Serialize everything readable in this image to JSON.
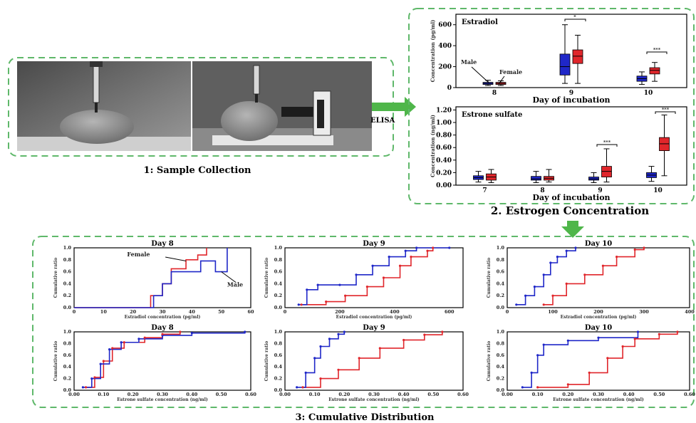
{
  "captions": {
    "sample": "1: Sample Collection",
    "estrogen": "2. Estrogen Concentration",
    "cumulative": "3: Cumulative Distribution",
    "arrow_label": "ELISA"
  },
  "colors": {
    "male": "#1f27c8",
    "female": "#e0262b",
    "frame": "#5fb86a",
    "arrow": "#4fb64a"
  },
  "chart_data": [
    {
      "id": "estradiol",
      "type": "box",
      "title": "Estradiol",
      "xlabel": "Day of incubation",
      "ylabel": "Concentration (pg/ml)",
      "ylim": [
        0,
        700
      ],
      "yticks": [
        "0",
        "200",
        "400",
        "600"
      ],
      "categories": [
        "8",
        "9",
        "10"
      ],
      "annotations": [
        "Male",
        "Female",
        "*",
        "***"
      ],
      "series": [
        {
          "name": "Male",
          "boxes": [
            [
              20,
              30,
              40,
              50,
              70
            ],
            [
              40,
              120,
              200,
              320,
              600
            ],
            [
              30,
              60,
              85,
              110,
              150
            ]
          ]
        },
        {
          "name": "Female",
          "boxes": [
            [
              20,
              30,
              40,
              50,
              65
            ],
            [
              40,
              230,
              300,
              360,
              500
            ],
            [
              60,
              130,
              165,
              190,
              240
            ]
          ]
        }
      ]
    },
    {
      "id": "estrone",
      "type": "box",
      "title": "Estrone sulfate",
      "xlabel": "Day of incubation",
      "ylabel": "Concentration (ng/ml)",
      "ylim": [
        0,
        1.25
      ],
      "yticks": [
        "0.00",
        "0.20",
        "0.40",
        "0.60",
        "0.80",
        "1.00",
        "1.20"
      ],
      "categories": [
        "7",
        "8",
        "9",
        "10"
      ],
      "annotations": [
        "***",
        "***"
      ],
      "series": [
        {
          "name": "Male",
          "boxes": [
            [
              0.05,
              0.09,
              0.12,
              0.15,
              0.22
            ],
            [
              0.04,
              0.08,
              0.1,
              0.14,
              0.22
            ],
            [
              0.04,
              0.08,
              0.1,
              0.13,
              0.2
            ],
            [
              0.06,
              0.12,
              0.16,
              0.2,
              0.3
            ]
          ]
        },
        {
          "name": "Female",
          "boxes": [
            [
              0.04,
              0.08,
              0.13,
              0.18,
              0.25
            ],
            [
              0.05,
              0.08,
              0.11,
              0.14,
              0.25
            ],
            [
              0.05,
              0.13,
              0.22,
              0.3,
              0.58
            ],
            [
              0.15,
              0.55,
              0.66,
              0.76,
              1.12
            ]
          ]
        }
      ]
    }
  ],
  "cdf_panels": [
    {
      "title": "Day 8",
      "ylabel": "Cumulative ratio",
      "xlabel": "Estradiol concentration (pg/ml)",
      "xticks": [
        "0",
        "10",
        "20",
        "30",
        "40",
        "50",
        "60"
      ],
      "xmax": 60,
      "labels": [
        "Female",
        "Male"
      ],
      "male": [
        [
          0,
          0
        ],
        [
          27,
          0
        ],
        [
          27,
          0.2
        ],
        [
          30,
          0.2
        ],
        [
          30,
          0.4
        ],
        [
          33,
          0.4
        ],
        [
          33,
          0.6
        ],
        [
          43,
          0.6
        ],
        [
          43,
          0.78
        ],
        [
          48,
          0.78
        ],
        [
          48,
          0.6
        ],
        [
          52,
          0.6
        ],
        [
          52,
          1
        ]
      ],
      "female": [
        [
          0,
          0
        ],
        [
          26,
          0
        ],
        [
          26,
          0.2
        ],
        [
          30,
          0.2
        ],
        [
          30,
          0.4
        ],
        [
          33,
          0.4
        ],
        [
          33,
          0.65
        ],
        [
          38,
          0.65
        ],
        [
          38,
          0.8
        ],
        [
          42,
          0.8
        ],
        [
          42,
          0.88
        ],
        [
          45,
          0.88
        ],
        [
          45,
          1
        ]
      ]
    },
    {
      "title": "Day 9",
      "ylabel": "Cumulative ratio",
      "xlabel": "Estradiol concentration (pg/ml)",
      "xticks": [
        "0",
        "200",
        "400",
        "600"
      ],
      "xmax": 650,
      "male": [
        [
          50,
          0.05
        ],
        [
          80,
          0.3
        ],
        [
          120,
          0.38
        ],
        [
          200,
          0.38
        ],
        [
          260,
          0.55
        ],
        [
          320,
          0.7
        ],
        [
          380,
          0.85
        ],
        [
          440,
          0.95
        ],
        [
          480,
          1
        ],
        [
          600,
          1
        ]
      ],
      "female": [
        [
          60,
          0.05
        ],
        [
          150,
          0.1
        ],
        [
          220,
          0.2
        ],
        [
          300,
          0.35
        ],
        [
          360,
          0.5
        ],
        [
          420,
          0.7
        ],
        [
          460,
          0.85
        ],
        [
          520,
          0.95
        ],
        [
          540,
          1
        ]
      ]
    },
    {
      "title": "Day 10",
      "ylabel": "Cumulative ratio",
      "xlabel": "Estradiol concentration (pg/ml)",
      "xticks": [
        "0",
        "100",
        "200",
        "300",
        "400"
      ],
      "xmax": 400,
      "male": [
        [
          20,
          0.05
        ],
        [
          40,
          0.2
        ],
        [
          60,
          0.35
        ],
        [
          80,
          0.55
        ],
        [
          95,
          0.75
        ],
        [
          110,
          0.85
        ],
        [
          130,
          0.95
        ],
        [
          150,
          1
        ]
      ],
      "female": [
        [
          80,
          0.05
        ],
        [
          100,
          0.2
        ],
        [
          130,
          0.4
        ],
        [
          170,
          0.55
        ],
        [
          210,
          0.7
        ],
        [
          240,
          0.85
        ],
        [
          280,
          0.97
        ],
        [
          300,
          1
        ]
      ]
    },
    {
      "title": "Day 8",
      "ylabel": "Cumulative ratio",
      "xlabel": "Estrone sulfate concentration (ng/ml)",
      "xticks": [
        "0.00",
        "0.10",
        "0.20",
        "0.30",
        "0.40",
        "0.50",
        "0.60"
      ],
      "xmax": 0.6,
      "male": [
        [
          0.03,
          0.05
        ],
        [
          0.06,
          0.2
        ],
        [
          0.09,
          0.45
        ],
        [
          0.12,
          0.7
        ],
        [
          0.16,
          0.82
        ],
        [
          0.22,
          0.88
        ],
        [
          0.3,
          0.94
        ],
        [
          0.4,
          0.98
        ],
        [
          0.58,
          1
        ]
      ],
      "female": [
        [
          0.04,
          0.05
        ],
        [
          0.07,
          0.22
        ],
        [
          0.1,
          0.5
        ],
        [
          0.13,
          0.72
        ],
        [
          0.17,
          0.82
        ],
        [
          0.24,
          0.9
        ],
        [
          0.3,
          0.96
        ],
        [
          0.36,
          1
        ]
      ]
    },
    {
      "title": "Day 9",
      "ylabel": "Cumulative ratio",
      "xlabel": "Estrone sulfate concentration (ng/ml)",
      "xticks": [
        "0.00",
        "0.10",
        "0.20",
        "0.30",
        "0.40",
        "0.50",
        "0.60"
      ],
      "xmax": 0.6,
      "male": [
        [
          0.04,
          0.05
        ],
        [
          0.07,
          0.3
        ],
        [
          0.1,
          0.55
        ],
        [
          0.12,
          0.75
        ],
        [
          0.15,
          0.88
        ],
        [
          0.18,
          0.96
        ],
        [
          0.2,
          1
        ]
      ],
      "female": [
        [
          0.06,
          0.05
        ],
        [
          0.12,
          0.2
        ],
        [
          0.18,
          0.35
        ],
        [
          0.25,
          0.55
        ],
        [
          0.32,
          0.72
        ],
        [
          0.4,
          0.86
        ],
        [
          0.47,
          0.95
        ],
        [
          0.53,
          1
        ]
      ]
    },
    {
      "title": "Day 10",
      "ylabel": "Cumulative ratio",
      "xlabel": "Estrone sulfate concentration (ng/ml)",
      "xticks": [
        "0.00",
        "0.10",
        "0.20",
        "0.30",
        "0.40",
        "0.50",
        "0.60"
      ],
      "xmax": 0.6,
      "male": [
        [
          0.05,
          0.05
        ],
        [
          0.08,
          0.3
        ],
        [
          0.1,
          0.6
        ],
        [
          0.12,
          0.78
        ],
        [
          0.2,
          0.85
        ],
        [
          0.3,
          0.9
        ],
        [
          0.43,
          1
        ]
      ],
      "female": [
        [
          0.1,
          0.05
        ],
        [
          0.2,
          0.1
        ],
        [
          0.27,
          0.3
        ],
        [
          0.33,
          0.55
        ],
        [
          0.38,
          0.75
        ],
        [
          0.42,
          0.88
        ],
        [
          0.5,
          0.96
        ],
        [
          0.56,
          1
        ]
      ]
    }
  ]
}
